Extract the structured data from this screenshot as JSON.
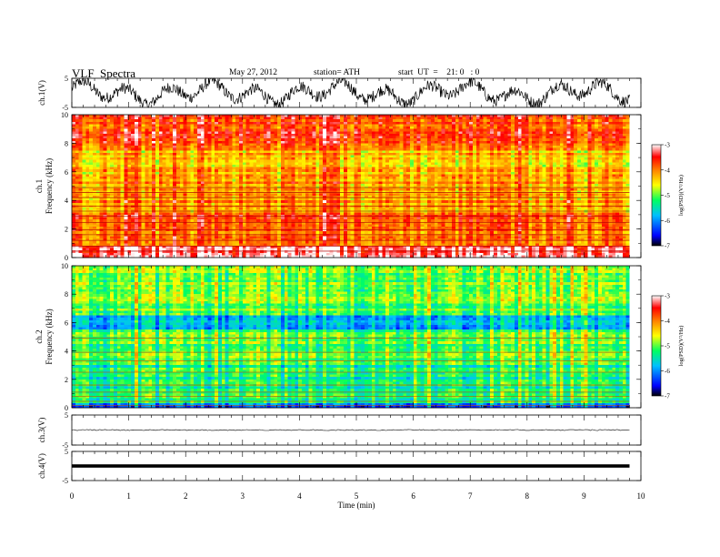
{
  "header": {
    "title": "VLF  Spectra",
    "date": "May 27, 2012",
    "station": "station= ATH",
    "start": "start  UT  =    21: 0   : 0"
  },
  "chart_data": [
    {
      "type": "line",
      "panel": "ch1-waveform",
      "ylabel": "ch.1(V)",
      "yticks": [
        "5",
        "-5"
      ],
      "ylim": [
        -5,
        5
      ],
      "xlim": [
        0,
        10
      ],
      "data_end_min": 9.8
    },
    {
      "type": "heatmap",
      "panel": "ch1-spectrogram",
      "ylabel_line1": "ch.1",
      "ylabel_line2": "Frequency  (kHz)",
      "yticks": [
        "10",
        "8",
        "6",
        "4",
        "2",
        "0"
      ],
      "ylim": [
        0,
        10
      ],
      "xlim": [
        0,
        10
      ],
      "data_end_min": 9.8,
      "colorbar": {
        "label": "log(PSD)(V²/Hz)",
        "ticks": [
          "-3",
          "-4",
          "-5",
          "-6",
          "-7"
        ],
        "range": [
          -7,
          -3
        ]
      }
    },
    {
      "type": "heatmap",
      "panel": "ch2-spectrogram",
      "ylabel_line1": "ch.2",
      "ylabel_line2": "Frequency  (kHz)",
      "yticks": [
        "10",
        "8",
        "6",
        "4",
        "2",
        "0"
      ],
      "ylim": [
        0,
        10
      ],
      "xlim": [
        0,
        10
      ],
      "data_end_min": 9.8,
      "colorbar": {
        "label": "log(PSD)(V²/Hz)",
        "ticks": [
          "-3",
          "-4",
          "-5",
          "-6",
          "-7"
        ],
        "range": [
          -7,
          -3
        ]
      }
    },
    {
      "type": "line",
      "panel": "ch3-waveform",
      "ylabel": "ch.3(V)",
      "yticks": [
        "5",
        "-5"
      ],
      "ylim": [
        -5,
        5
      ],
      "xlim": [
        0,
        10
      ],
      "data_end_min": 9.8
    },
    {
      "type": "line",
      "panel": "ch4-waveform",
      "ylabel": "ch.4(V)",
      "yticks": [
        "5",
        "-5"
      ],
      "ylim": [
        -5,
        5
      ],
      "xlim": [
        0,
        10
      ],
      "data_end_min": 9.8
    }
  ],
  "xaxis": {
    "label": "Time  (min)",
    "ticks": [
      "0",
      "1",
      "2",
      "3",
      "4",
      "5",
      "6",
      "7",
      "8",
      "9",
      "10"
    ]
  }
}
